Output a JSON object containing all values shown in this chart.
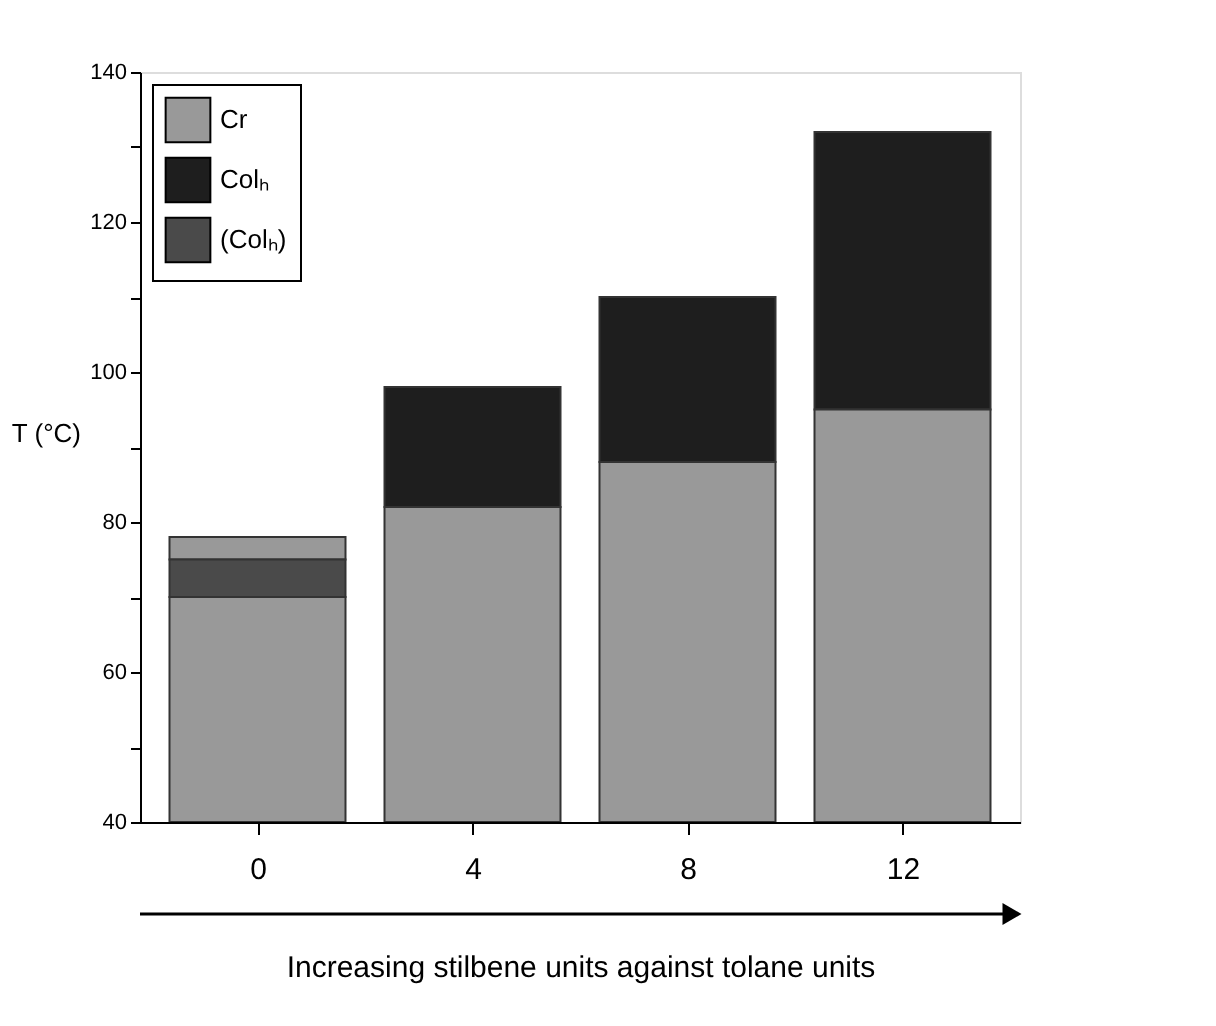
{
  "chart_data": {
    "type": "bar",
    "xlabel": "Increasing stilbene units against tolane units",
    "ylabel": "T (°C)",
    "categories": [
      "0",
      "4",
      "8",
      "12"
    ],
    "series": [
      {
        "name": "Cr",
        "color": "#999999",
        "base": [
          40,
          40,
          40,
          40
        ],
        "values": [
          30,
          42,
          48,
          55
        ]
      },
      {
        "name": "Colₕ",
        "color": "#1e1e1e",
        "base": [
          null,
          82,
          88,
          95
        ],
        "values": [
          null,
          16,
          22,
          37
        ]
      },
      {
        "name": "(Colₕ)",
        "color": "#4a4a4a",
        "base": [
          70,
          null,
          null,
          null
        ],
        "values": [
          5,
          null,
          null,
          null
        ]
      },
      {
        "color": "#999999",
        "base": [
          75,
          null,
          null,
          null
        ],
        "values": [
          3,
          null,
          null,
          null
        ]
      }
    ],
    "ylim": [
      40,
      140
    ],
    "yticks": [
      40,
      {
        "value": 50,
        "label": null
      },
      60,
      {
        "value": 70,
        "label": null
      },
      80,
      {
        "value": 90,
        "label": null
      },
      100,
      {
        "value": 110,
        "label": null
      },
      120,
      {
        "value": 130,
        "label": null
      },
      140
    ],
    "grid": false,
    "legend": "top left"
  }
}
